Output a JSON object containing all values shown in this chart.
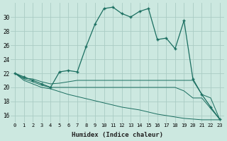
{
  "xlabel": "Humidex (Indice chaleur)",
  "ylabel": "",
  "bg_color": "#cce8e0",
  "grid_color": "#aaccc4",
  "line_color": "#1a6e60",
  "xlim": [
    -0.5,
    23.5
  ],
  "ylim": [
    15,
    32
  ],
  "yticks": [
    16,
    18,
    20,
    22,
    24,
    26,
    28,
    30
  ],
  "xticks": [
    0,
    1,
    2,
    3,
    4,
    5,
    6,
    7,
    8,
    9,
    10,
    11,
    12,
    13,
    14,
    15,
    16,
    17,
    18,
    19,
    20,
    21,
    22,
    23
  ],
  "curve1_x": [
    0,
    1,
    2,
    3,
    4,
    5,
    6,
    7,
    8,
    9,
    10,
    11,
    12,
    13,
    14,
    15,
    16,
    17,
    18,
    19,
    20,
    21,
    22,
    23
  ],
  "curve1_y": [
    22.0,
    21.5,
    21.0,
    20.5,
    20.0,
    22.2,
    22.4,
    22.2,
    25.8,
    29.0,
    31.2,
    31.4,
    30.5,
    30.0,
    30.8,
    31.2,
    26.8,
    27.0,
    25.5,
    29.5,
    21.2,
    19.0,
    17.2,
    15.5
  ],
  "curve2_x": [
    0,
    1,
    2,
    3,
    4,
    5,
    6,
    7,
    8,
    9,
    10,
    11,
    12,
    13,
    14,
    15,
    16,
    17,
    18,
    19,
    20,
    21,
    22,
    23
  ],
  "curve2_y": [
    22.0,
    21.3,
    21.2,
    20.8,
    20.5,
    20.6,
    20.8,
    21.0,
    21.0,
    21.0,
    21.0,
    21.0,
    21.0,
    21.0,
    21.0,
    21.0,
    21.0,
    21.0,
    21.0,
    21.0,
    21.0,
    19.0,
    18.5,
    15.5
  ],
  "curve3_x": [
    0,
    1,
    2,
    3,
    4,
    5,
    6,
    7,
    8,
    9,
    10,
    11,
    12,
    13,
    14,
    15,
    16,
    17,
    18,
    19,
    20,
    21,
    22,
    23
  ],
  "curve3_y": [
    22.0,
    21.2,
    20.8,
    20.3,
    20.0,
    20.0,
    20.0,
    20.0,
    20.0,
    20.0,
    20.0,
    20.0,
    20.0,
    20.0,
    20.0,
    20.0,
    20.0,
    20.0,
    20.0,
    19.5,
    18.5,
    18.5,
    17.0,
    15.5
  ],
  "curve4_x": [
    0,
    1,
    2,
    3,
    4,
    5,
    6,
    7,
    8,
    9,
    10,
    11,
    12,
    13,
    14,
    15,
    16,
    17,
    18,
    19,
    20,
    21,
    22,
    23
  ],
  "curve4_y": [
    22.0,
    21.0,
    20.5,
    20.0,
    19.8,
    19.4,
    19.0,
    18.7,
    18.4,
    18.1,
    17.8,
    17.5,
    17.2,
    17.0,
    16.8,
    16.5,
    16.2,
    16.0,
    15.8,
    15.6,
    15.5,
    15.4,
    15.4,
    15.4
  ]
}
